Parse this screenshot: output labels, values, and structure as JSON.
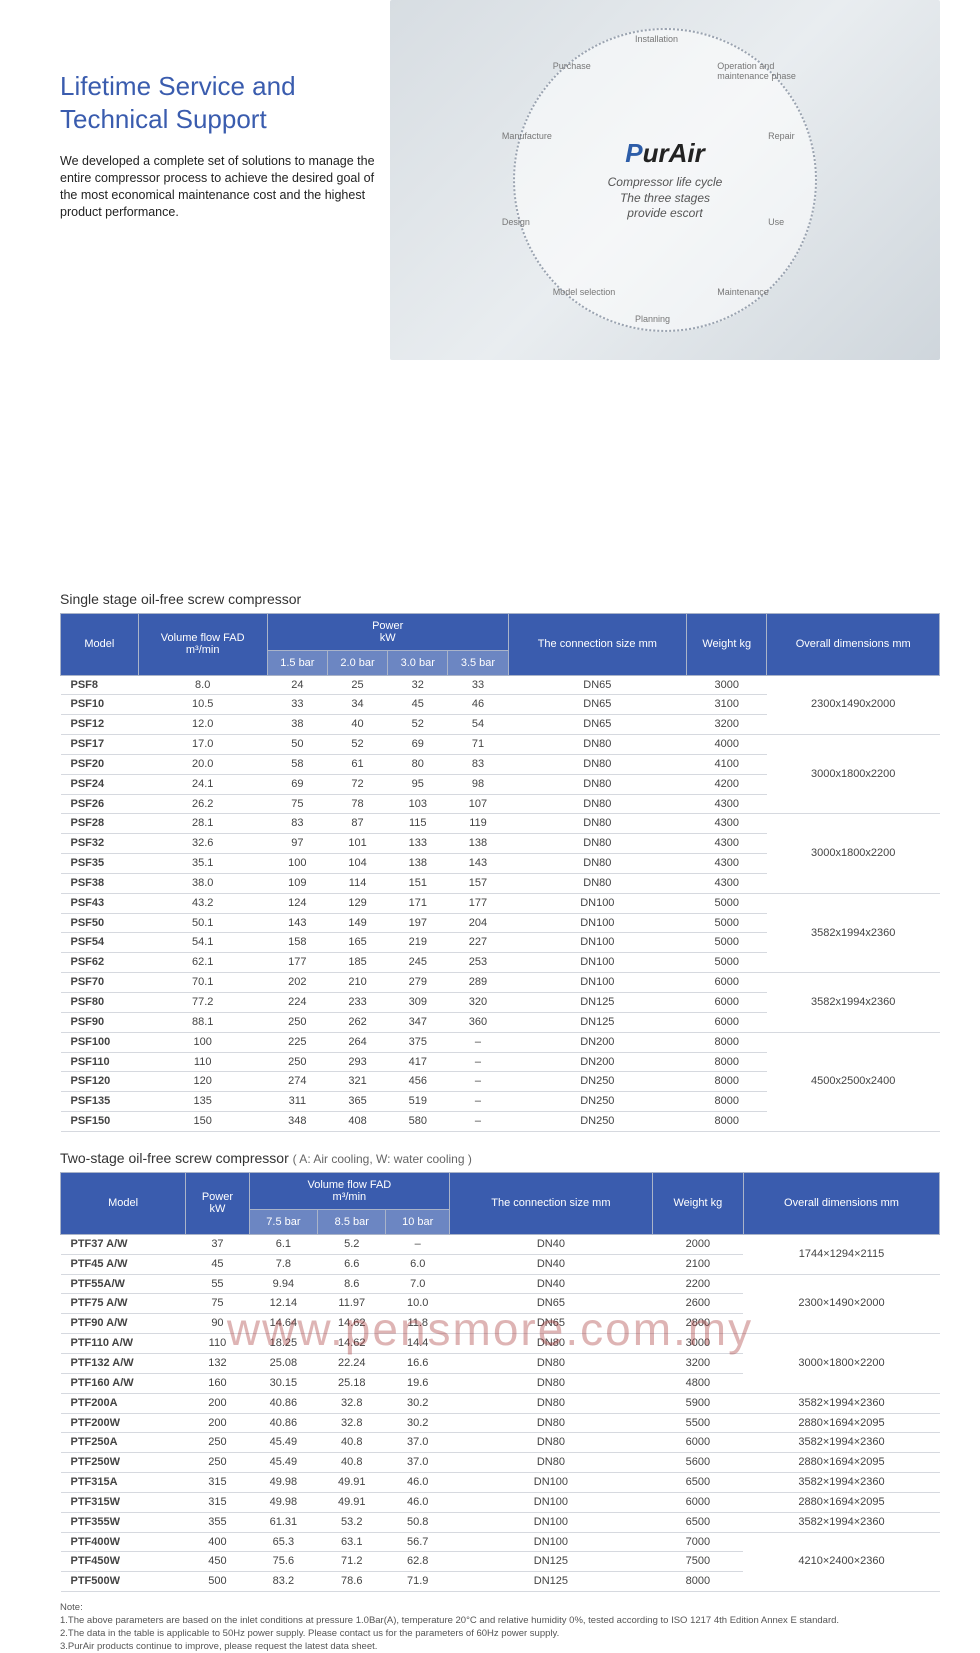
{
  "header": {
    "title_line1": "Lifetime Service and",
    "title_line2": "Technical Support",
    "body": "We developed a complete set of solutions to manage the entire compressor process to achieve the desired goal of the most economical maintenance cost and the highest product performance."
  },
  "hero": {
    "brand_prefix": "P",
    "brand_rest": "urAir",
    "sub_line1": "Compressor life cycle",
    "sub_line2": "The three stages",
    "sub_line3": "provide escort",
    "ring_words": [
      "Installation",
      "Operation and maintenance phase",
      "Repair",
      "Use",
      "Maintenance",
      "Planning",
      "Model selection",
      "Design",
      "Manufacture",
      "Purchase"
    ]
  },
  "table1": {
    "title": "Single stage oil-free screw compressor",
    "headers": {
      "model": "Model",
      "fad": "Volume flow FAD",
      "fad_unit": "m³/min",
      "power": "Power",
      "power_unit": "kW",
      "conn": "The connection size mm",
      "weight": "Weight kg",
      "dim": "Overall dimensions mm",
      "power_sub": [
        "1.5 bar",
        "2.0 bar",
        "3.0 bar",
        "3.5 bar"
      ]
    },
    "groups": [
      {
        "dim": "2300x1490x2000",
        "rows": [
          {
            "m": "PSF8",
            "fad": "8.0",
            "p": [
              "24",
              "25",
              "32",
              "33"
            ],
            "c": "DN65",
            "w": "3000"
          },
          {
            "m": "PSF10",
            "fad": "10.5",
            "p": [
              "33",
              "34",
              "45",
              "46"
            ],
            "c": "DN65",
            "w": "3100"
          },
          {
            "m": "PSF12",
            "fad": "12.0",
            "p": [
              "38",
              "40",
              "52",
              "54"
            ],
            "c": "DN65",
            "w": "3200"
          }
        ]
      },
      {
        "dim": "3000x1800x2200",
        "rows": [
          {
            "m": "PSF17",
            "fad": "17.0",
            "p": [
              "50",
              "52",
              "69",
              "71"
            ],
            "c": "DN80",
            "w": "4000"
          },
          {
            "m": "PSF20",
            "fad": "20.0",
            "p": [
              "58",
              "61",
              "80",
              "83"
            ],
            "c": "DN80",
            "w": "4100"
          },
          {
            "m": "PSF24",
            "fad": "24.1",
            "p": [
              "69",
              "72",
              "95",
              "98"
            ],
            "c": "DN80",
            "w": "4200"
          },
          {
            "m": "PSF26",
            "fad": "26.2",
            "p": [
              "75",
              "78",
              "103",
              "107"
            ],
            "c": "DN80",
            "w": "4300"
          }
        ]
      },
      {
        "dim": "3000x1800x2200",
        "rows": [
          {
            "m": "PSF28",
            "fad": "28.1",
            "p": [
              "83",
              "87",
              "115",
              "119"
            ],
            "c": "DN80",
            "w": "4300"
          },
          {
            "m": "PSF32",
            "fad": "32.6",
            "p": [
              "97",
              "101",
              "133",
              "138"
            ],
            "c": "DN80",
            "w": "4300"
          },
          {
            "m": "PSF35",
            "fad": "35.1",
            "p": [
              "100",
              "104",
              "138",
              "143"
            ],
            "c": "DN80",
            "w": "4300"
          },
          {
            "m": "PSF38",
            "fad": "38.0",
            "p": [
              "109",
              "114",
              "151",
              "157"
            ],
            "c": "DN80",
            "w": "4300"
          }
        ]
      },
      {
        "dim": "3582x1994x2360",
        "rows": [
          {
            "m": "PSF43",
            "fad": "43.2",
            "p": [
              "124",
              "129",
              "171",
              "177"
            ],
            "c": "DN100",
            "w": "5000"
          },
          {
            "m": "PSF50",
            "fad": "50.1",
            "p": [
              "143",
              "149",
              "197",
              "204"
            ],
            "c": "DN100",
            "w": "5000"
          },
          {
            "m": "PSF54",
            "fad": "54.1",
            "p": [
              "158",
              "165",
              "219",
              "227"
            ],
            "c": "DN100",
            "w": "5000"
          },
          {
            "m": "PSF62",
            "fad": "62.1",
            "p": [
              "177",
              "185",
              "245",
              "253"
            ],
            "c": "DN100",
            "w": "5000"
          }
        ]
      },
      {
        "dim": "3582x1994x2360",
        "rows": [
          {
            "m": "PSF70",
            "fad": "70.1",
            "p": [
              "202",
              "210",
              "279",
              "289"
            ],
            "c": "DN100",
            "w": "6000"
          },
          {
            "m": "PSF80",
            "fad": "77.2",
            "p": [
              "224",
              "233",
              "309",
              "320"
            ],
            "c": "DN125",
            "w": "6000"
          },
          {
            "m": "PSF90",
            "fad": "88.1",
            "p": [
              "250",
              "262",
              "347",
              "360"
            ],
            "c": "DN125",
            "w": "6000"
          }
        ]
      },
      {
        "dim": "4500x2500x2400",
        "rows": [
          {
            "m": "PSF100",
            "fad": "100",
            "p": [
              "225",
              "264",
              "375",
              "–"
            ],
            "c": "DN200",
            "w": "8000"
          },
          {
            "m": "PSF110",
            "fad": "110",
            "p": [
              "250",
              "293",
              "417",
              "–"
            ],
            "c": "DN200",
            "w": "8000"
          },
          {
            "m": "PSF120",
            "fad": "120",
            "p": [
              "274",
              "321",
              "456",
              "–"
            ],
            "c": "DN250",
            "w": "8000"
          },
          {
            "m": "PSF135",
            "fad": "135",
            "p": [
              "311",
              "365",
              "519",
              "–"
            ],
            "c": "DN250",
            "w": "8000"
          },
          {
            "m": "PSF150",
            "fad": "150",
            "p": [
              "348",
              "408",
              "580",
              "–"
            ],
            "c": "DN250",
            "w": "8000"
          }
        ]
      }
    ]
  },
  "table2": {
    "title": "Two-stage oil-free screw compressor",
    "append": "( A: Air cooling, W: water cooling )",
    "headers": {
      "model": "Model",
      "power": "Power",
      "power_unit": "kW",
      "fad": "Volume flow FAD",
      "fad_unit": "m³/min",
      "conn": "The connection size mm",
      "weight": "Weight kg",
      "dim": "Overall dimensions mm",
      "fad_sub": [
        "7.5 bar",
        "8.5 bar",
        "10 bar"
      ]
    },
    "groups": [
      {
        "dim": "1744×1294×2115",
        "rows": [
          {
            "m": "PTF37 A/W",
            "pw": "37",
            "f": [
              "6.1",
              "5.2",
              "–"
            ],
            "c": "DN40",
            "w": "2000"
          },
          {
            "m": "PTF45 A/W",
            "pw": "45",
            "f": [
              "7.8",
              "6.6",
              "6.0"
            ],
            "c": "DN40",
            "w": "2100"
          }
        ]
      },
      {
        "dim": "2300×1490×2000",
        "rows": [
          {
            "m": "PTF55A/W",
            "pw": "55",
            "f": [
              "9.94",
              "8.6",
              "7.0"
            ],
            "c": "DN40",
            "w": "2200"
          },
          {
            "m": "PTF75 A/W",
            "pw": "75",
            "f": [
              "12.14",
              "11.97",
              "10.0"
            ],
            "c": "DN65",
            "w": "2600"
          },
          {
            "m": "PTF90 A/W",
            "pw": "90",
            "f": [
              "14.64",
              "14.62",
              "11.8"
            ],
            "c": "DN65",
            "w": "2800"
          }
        ]
      },
      {
        "dim": "3000×1800×2200",
        "rows": [
          {
            "m": "PTF110 A/W",
            "pw": "110",
            "f": [
              "18.25",
              "14.62",
              "14.4"
            ],
            "c": "DN80",
            "w": "3000"
          },
          {
            "m": "PTF132 A/W",
            "pw": "132",
            "f": [
              "25.08",
              "22.24",
              "16.6"
            ],
            "c": "DN80",
            "w": "3200"
          },
          {
            "m": "PTF160 A/W",
            "pw": "160",
            "f": [
              "30.15",
              "25.18",
              "19.6"
            ],
            "c": "DN80",
            "w": "4800"
          }
        ]
      },
      {
        "dim": null,
        "rows": [
          {
            "m": "PTF200A",
            "pw": "200",
            "f": [
              "40.86",
              "32.8",
              "30.2"
            ],
            "c": "DN80",
            "w": "5900",
            "d": "3582×1994×2360"
          },
          {
            "m": "PTF200W",
            "pw": "200",
            "f": [
              "40.86",
              "32.8",
              "30.2"
            ],
            "c": "DN80",
            "w": "5500",
            "d": "2880×1694×2095"
          },
          {
            "m": "PTF250A",
            "pw": "250",
            "f": [
              "45.49",
              "40.8",
              "37.0"
            ],
            "c": "DN80",
            "w": "6000",
            "d": "3582×1994×2360"
          },
          {
            "m": "PTF250W",
            "pw": "250",
            "f": [
              "45.49",
              "40.8",
              "37.0"
            ],
            "c": "DN80",
            "w": "5600",
            "d": "2880×1694×2095"
          },
          {
            "m": "PTF315A",
            "pw": "315",
            "f": [
              "49.98",
              "49.91",
              "46.0"
            ],
            "c": "DN100",
            "w": "6500",
            "d": "3582×1994×2360"
          },
          {
            "m": "PTF315W",
            "pw": "315",
            "f": [
              "49.98",
              "49.91",
              "46.0"
            ],
            "c": "DN100",
            "w": "6000",
            "d": "2880×1694×2095"
          },
          {
            "m": "PTF355W",
            "pw": "355",
            "f": [
              "61.31",
              "53.2",
              "50.8"
            ],
            "c": "DN100",
            "w": "6500",
            "d": "3582×1994×2360"
          }
        ]
      },
      {
        "dim": "4210×2400×2360",
        "rows": [
          {
            "m": "PTF400W",
            "pw": "400",
            "f": [
              "65.3",
              "63.1",
              "56.7"
            ],
            "c": "DN100",
            "w": "7000"
          },
          {
            "m": "PTF450W",
            "pw": "450",
            "f": [
              "75.6",
              "71.2",
              "62.8"
            ],
            "c": "DN125",
            "w": "7500"
          },
          {
            "m": "PTF500W",
            "pw": "500",
            "f": [
              "83.2",
              "78.6",
              "71.9"
            ],
            "c": "DN125",
            "w": "8000"
          }
        ]
      }
    ]
  },
  "notes": {
    "head": "Note:",
    "lines": [
      "1.The above parameters are based on the inlet conditions at pressure 1.0Bar(A), temperature 20°C and relative humidity 0%, tested according to ISO 1217 4th Edition Annex E standard.",
      "2.The data in the table is applicable to 50Hz power supply. Please contact us for the parameters of 60Hz power supply.",
      "3.PurAir products continue to improve, please request the latest data sheet."
    ]
  },
  "watermark": "www.pensmore.com.my",
  "colors": {
    "brand_blue": "#3a5cae",
    "th_blue": "#3a5cae",
    "th_sub_blue": "#6c86c2",
    "grid": "#d6d9df"
  }
}
